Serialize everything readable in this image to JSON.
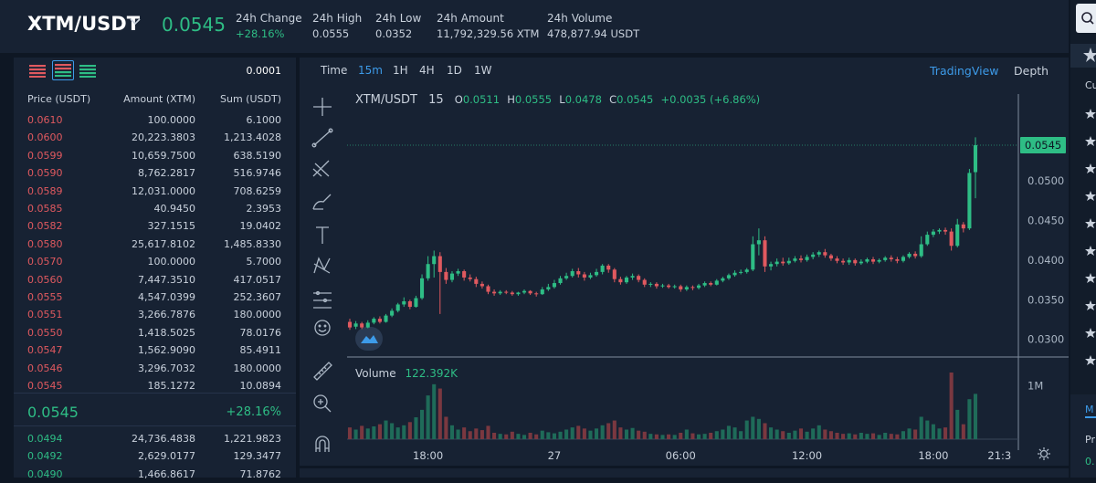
{
  "header": {
    "pair": "XTM/USDT",
    "last_price": "0.0545",
    "stats": [
      {
        "label": "24h Change",
        "value": "+28.16%",
        "up": true
      },
      {
        "label": "24h High",
        "value": "0.0555",
        "up": false
      },
      {
        "label": "24h Low",
        "value": "0.0352",
        "up": false
      },
      {
        "label": "24h Amount",
        "value": "11,792,329.56 XTM",
        "up": false
      },
      {
        "label": "24h Volume",
        "value": "478,877.94 USDT",
        "up": false
      }
    ]
  },
  "orderbook": {
    "precision": "0.0001",
    "columns": {
      "price": "Price (USDT)",
      "amount": "Amount (XTM)",
      "sum": "Sum (USDT)"
    },
    "asks": [
      [
        "0.0610",
        "100.0000",
        "6.1000"
      ],
      [
        "0.0600",
        "20,223.3803",
        "1,213.4028"
      ],
      [
        "0.0599",
        "10,659.7500",
        "638.5190"
      ],
      [
        "0.0590",
        "8,762.2817",
        "516.9746"
      ],
      [
        "0.0589",
        "12,031.0000",
        "708.6259"
      ],
      [
        "0.0585",
        "40.9450",
        "2.3953"
      ],
      [
        "0.0582",
        "327.1515",
        "19.0402"
      ],
      [
        "0.0580",
        "25,617.8102",
        "1,485.8330"
      ],
      [
        "0.0570",
        "100.0000",
        "5.7000"
      ],
      [
        "0.0560",
        "7,447.3510",
        "417.0517"
      ],
      [
        "0.0555",
        "4,547.0399",
        "252.3607"
      ],
      [
        "0.0551",
        "3,266.7876",
        "180.0000"
      ],
      [
        "0.0550",
        "1,418.5025",
        "78.0176"
      ],
      [
        "0.0547",
        "1,562.9090",
        "85.4911"
      ],
      [
        "0.0546",
        "3,296.7032",
        "180.0000"
      ],
      [
        "0.0545",
        "185.1272",
        "10.0894"
      ]
    ],
    "last_price": "0.0545",
    "last_change": "+28.16%",
    "bids": [
      [
        "0.0494",
        "24,736.4838",
        "1,221.9823"
      ],
      [
        "0.0492",
        "2,629.0177",
        "129.3477"
      ],
      [
        "0.0490",
        "1,466.8617",
        "71.8762"
      ]
    ]
  },
  "chart_toolbar": {
    "intervals": [
      "Time",
      "15m",
      "1H",
      "4H",
      "1D",
      "1W"
    ],
    "active_interval": "15m",
    "view_tradingview": "TradingView",
    "view_depth": "Depth"
  },
  "chart_legend": {
    "symbol": "XTM/USDT",
    "interval": "15",
    "o_label": "O",
    "o": "0.0511",
    "h_label": "H",
    "h": "0.0555",
    "l_label": "L",
    "l": "0.0478",
    "c_label": "C",
    "c": "0.0545",
    "change": "+0.0035 (+6.86%)",
    "volume_label": "Volume",
    "volume_value": "122.392K"
  },
  "chart_data": {
    "type": "candlestick",
    "price_axis": {
      "min": 0.028,
      "max": 0.0575,
      "ticks": [
        "0.0500",
        "0.0450",
        "0.0400",
        "0.0350",
        "0.0300"
      ],
      "tick_values": [
        0.05,
        0.045,
        0.04,
        0.035,
        0.03
      ]
    },
    "last_price_tag": "0.0545",
    "last_price_value": 0.0545,
    "volume_axis": {
      "max": 1.25,
      "ticks": [
        "1M"
      ],
      "tick_values": [
        1.0
      ]
    },
    "time_axis": {
      "labels": [
        "18:00",
        "27",
        "06:00",
        "12:00",
        "18:00",
        "21:3"
      ],
      "label_indices": [
        13,
        34,
        55,
        76,
        97,
        108
      ]
    },
    "colors": {
      "up": "#2ebd85",
      "down": "#e0595f",
      "up_vol": "#1f6b59",
      "down_vol": "#7a3840"
    },
    "candles": [
      [
        0.0322,
        0.0315,
        0.0326,
        0.0312,
        0.22
      ],
      [
        0.0316,
        0.032,
        0.0323,
        0.0313,
        0.18
      ],
      [
        0.032,
        0.0315,
        0.0322,
        0.0313,
        0.25
      ],
      [
        0.0315,
        0.0321,
        0.0324,
        0.0314,
        0.2
      ],
      [
        0.0321,
        0.0326,
        0.0328,
        0.0319,
        0.24
      ],
      [
        0.0326,
        0.0322,
        0.0329,
        0.032,
        0.28
      ],
      [
        0.0322,
        0.033,
        0.0332,
        0.0321,
        0.35
      ],
      [
        0.033,
        0.0336,
        0.0339,
        0.0328,
        0.3
      ],
      [
        0.0336,
        0.0344,
        0.0346,
        0.0334,
        0.22
      ],
      [
        0.0344,
        0.0348,
        0.0353,
        0.0341,
        0.26
      ],
      [
        0.0348,
        0.0341,
        0.035,
        0.0338,
        0.32
      ],
      [
        0.0341,
        0.0352,
        0.0355,
        0.034,
        0.41
      ],
      [
        0.0352,
        0.0377,
        0.0382,
        0.035,
        0.55
      ],
      [
        0.0377,
        0.0395,
        0.0405,
        0.0374,
        0.82
      ],
      [
        0.0395,
        0.0405,
        0.0412,
        0.0378,
        1.03
      ],
      [
        0.0405,
        0.0385,
        0.041,
        0.0332,
        0.95
      ],
      [
        0.0385,
        0.0375,
        0.039,
        0.037,
        0.42
      ],
      [
        0.0375,
        0.0383,
        0.0386,
        0.0372,
        0.26
      ],
      [
        0.0383,
        0.0386,
        0.0389,
        0.038,
        0.18
      ],
      [
        0.0386,
        0.0378,
        0.0388,
        0.0374,
        0.22
      ],
      [
        0.0378,
        0.0376,
        0.0382,
        0.0373,
        0.15
      ],
      [
        0.0376,
        0.037,
        0.0379,
        0.0366,
        0.2
      ],
      [
        0.037,
        0.0367,
        0.0373,
        0.0364,
        0.17
      ],
      [
        0.0367,
        0.036,
        0.0369,
        0.0357,
        0.25
      ],
      [
        0.036,
        0.0358,
        0.0363,
        0.0355,
        0.12
      ],
      [
        0.0358,
        0.036,
        0.0362,
        0.0356,
        0.1
      ],
      [
        0.036,
        0.0359,
        0.0362,
        0.0357,
        0.09
      ],
      [
        0.0359,
        0.0357,
        0.0361,
        0.0355,
        0.14
      ],
      [
        0.0357,
        0.0359,
        0.036,
        0.0355,
        0.1
      ],
      [
        0.0359,
        0.0361,
        0.0363,
        0.0357,
        0.08
      ],
      [
        0.0361,
        0.0358,
        0.0362,
        0.0356,
        0.12
      ],
      [
        0.0358,
        0.0357,
        0.036,
        0.0354,
        0.09
      ],
      [
        0.0357,
        0.0363,
        0.0366,
        0.0356,
        0.16
      ],
      [
        0.0363,
        0.0366,
        0.037,
        0.0361,
        0.13
      ],
      [
        0.0366,
        0.0371,
        0.0375,
        0.0364,
        0.11
      ],
      [
        0.0371,
        0.0377,
        0.038,
        0.0369,
        0.14
      ],
      [
        0.0377,
        0.038,
        0.0384,
        0.0375,
        0.18
      ],
      [
        0.038,
        0.0386,
        0.0389,
        0.0378,
        0.22
      ],
      [
        0.0386,
        0.0382,
        0.039,
        0.0378,
        0.25
      ],
      [
        0.0382,
        0.0378,
        0.0385,
        0.0374,
        0.2
      ],
      [
        0.0378,
        0.0381,
        0.0384,
        0.0376,
        0.16
      ],
      [
        0.0381,
        0.0385,
        0.0389,
        0.0379,
        0.2
      ],
      [
        0.0385,
        0.0393,
        0.0395,
        0.0382,
        0.26
      ],
      [
        0.0393,
        0.0388,
        0.0395,
        0.0384,
        0.3
      ],
      [
        0.0388,
        0.0376,
        0.039,
        0.0372,
        0.35
      ],
      [
        0.0376,
        0.0372,
        0.0379,
        0.0369,
        0.22
      ],
      [
        0.0372,
        0.0378,
        0.038,
        0.037,
        0.18
      ],
      [
        0.0378,
        0.038,
        0.0383,
        0.0375,
        0.21
      ],
      [
        0.038,
        0.0375,
        0.0382,
        0.0372,
        0.16
      ],
      [
        0.0375,
        0.0369,
        0.0377,
        0.0366,
        0.14
      ],
      [
        0.0369,
        0.037,
        0.0372,
        0.0366,
        0.1
      ],
      [
        0.037,
        0.0367,
        0.0372,
        0.0364,
        0.09
      ],
      [
        0.0367,
        0.0368,
        0.037,
        0.0365,
        0.08
      ],
      [
        0.0368,
        0.0366,
        0.037,
        0.0364,
        0.09
      ],
      [
        0.0366,
        0.0367,
        0.0369,
        0.0364,
        0.08
      ],
      [
        0.0367,
        0.0363,
        0.0369,
        0.036,
        0.12
      ],
      [
        0.0363,
        0.0366,
        0.0368,
        0.0361,
        0.18
      ],
      [
        0.0366,
        0.0365,
        0.0368,
        0.0362,
        0.11
      ],
      [
        0.0365,
        0.0368,
        0.037,
        0.0363,
        0.09
      ],
      [
        0.0368,
        0.0371,
        0.0373,
        0.0366,
        0.1
      ],
      [
        0.0371,
        0.0369,
        0.0373,
        0.0367,
        0.12
      ],
      [
        0.0369,
        0.0374,
        0.0376,
        0.0368,
        0.15
      ],
      [
        0.0374,
        0.0377,
        0.0379,
        0.0372,
        0.18
      ],
      [
        0.0377,
        0.0381,
        0.0383,
        0.0375,
        0.25
      ],
      [
        0.0381,
        0.0384,
        0.0387,
        0.0379,
        0.22
      ],
      [
        0.0384,
        0.0385,
        0.0388,
        0.0382,
        0.15
      ],
      [
        0.0385,
        0.0388,
        0.039,
        0.0383,
        0.35
      ],
      [
        0.0388,
        0.042,
        0.043,
        0.0386,
        0.42
      ],
      [
        0.042,
        0.0425,
        0.044,
        0.0406,
        0.38
      ],
      [
        0.0425,
        0.0392,
        0.043,
        0.0385,
        0.3
      ],
      [
        0.0392,
        0.0395,
        0.0398,
        0.0387,
        0.22
      ],
      [
        0.0395,
        0.0398,
        0.0402,
        0.0392,
        0.18
      ],
      [
        0.0398,
        0.0396,
        0.0403,
        0.0393,
        0.15
      ],
      [
        0.0396,
        0.0399,
        0.0403,
        0.0394,
        0.12
      ],
      [
        0.0399,
        0.0402,
        0.0405,
        0.0397,
        0.16
      ],
      [
        0.0402,
        0.04,
        0.0406,
        0.0397,
        0.2
      ],
      [
        0.04,
        0.0404,
        0.0407,
        0.0398,
        0.14
      ],
      [
        0.0404,
        0.0407,
        0.041,
        0.0401,
        0.2
      ],
      [
        0.0407,
        0.041,
        0.0412,
        0.0404,
        0.26
      ],
      [
        0.041,
        0.0406,
        0.0414,
        0.0403,
        0.18
      ],
      [
        0.0406,
        0.0402,
        0.0408,
        0.0399,
        0.15
      ],
      [
        0.0402,
        0.0399,
        0.0405,
        0.0396,
        0.12
      ],
      [
        0.0399,
        0.0397,
        0.0402,
        0.0394,
        0.1
      ],
      [
        0.0397,
        0.04,
        0.0403,
        0.0394,
        0.11
      ],
      [
        0.04,
        0.0396,
        0.0402,
        0.0393,
        0.09
      ],
      [
        0.0396,
        0.0398,
        0.0401,
        0.0394,
        0.12
      ],
      [
        0.0398,
        0.0401,
        0.0403,
        0.0396,
        0.1
      ],
      [
        0.0401,
        0.0398,
        0.0404,
        0.0395,
        0.11
      ],
      [
        0.0398,
        0.04,
        0.0402,
        0.0396,
        0.08
      ],
      [
        0.04,
        0.0403,
        0.0405,
        0.0398,
        0.12
      ],
      [
        0.0403,
        0.0401,
        0.0406,
        0.0398,
        0.1
      ],
      [
        0.0401,
        0.0399,
        0.0404,
        0.0396,
        0.09
      ],
      [
        0.0399,
        0.0404,
        0.0406,
        0.0397,
        0.15
      ],
      [
        0.0404,
        0.0408,
        0.041,
        0.0402,
        0.2
      ],
      [
        0.0408,
        0.0405,
        0.0411,
        0.0402,
        0.18
      ],
      [
        0.0405,
        0.042,
        0.043,
        0.0403,
        0.42
      ],
      [
        0.042,
        0.0432,
        0.0436,
        0.0418,
        0.35
      ],
      [
        0.0432,
        0.0436,
        0.0439,
        0.0429,
        0.28
      ],
      [
        0.0436,
        0.0438,
        0.044,
        0.0433,
        0.2
      ],
      [
        0.0438,
        0.0436,
        0.0441,
        0.0432,
        0.22
      ],
      [
        0.0436,
        0.0418,
        0.044,
        0.0412,
        1.25
      ],
      [
        0.0418,
        0.0445,
        0.0452,
        0.0416,
        0.55
      ],
      [
        0.0445,
        0.044,
        0.0448,
        0.0435,
        0.28
      ],
      [
        0.044,
        0.051,
        0.0515,
        0.0438,
        0.75
      ],
      [
        0.0511,
        0.0545,
        0.0555,
        0.0478,
        0.85
      ]
    ]
  }
}
